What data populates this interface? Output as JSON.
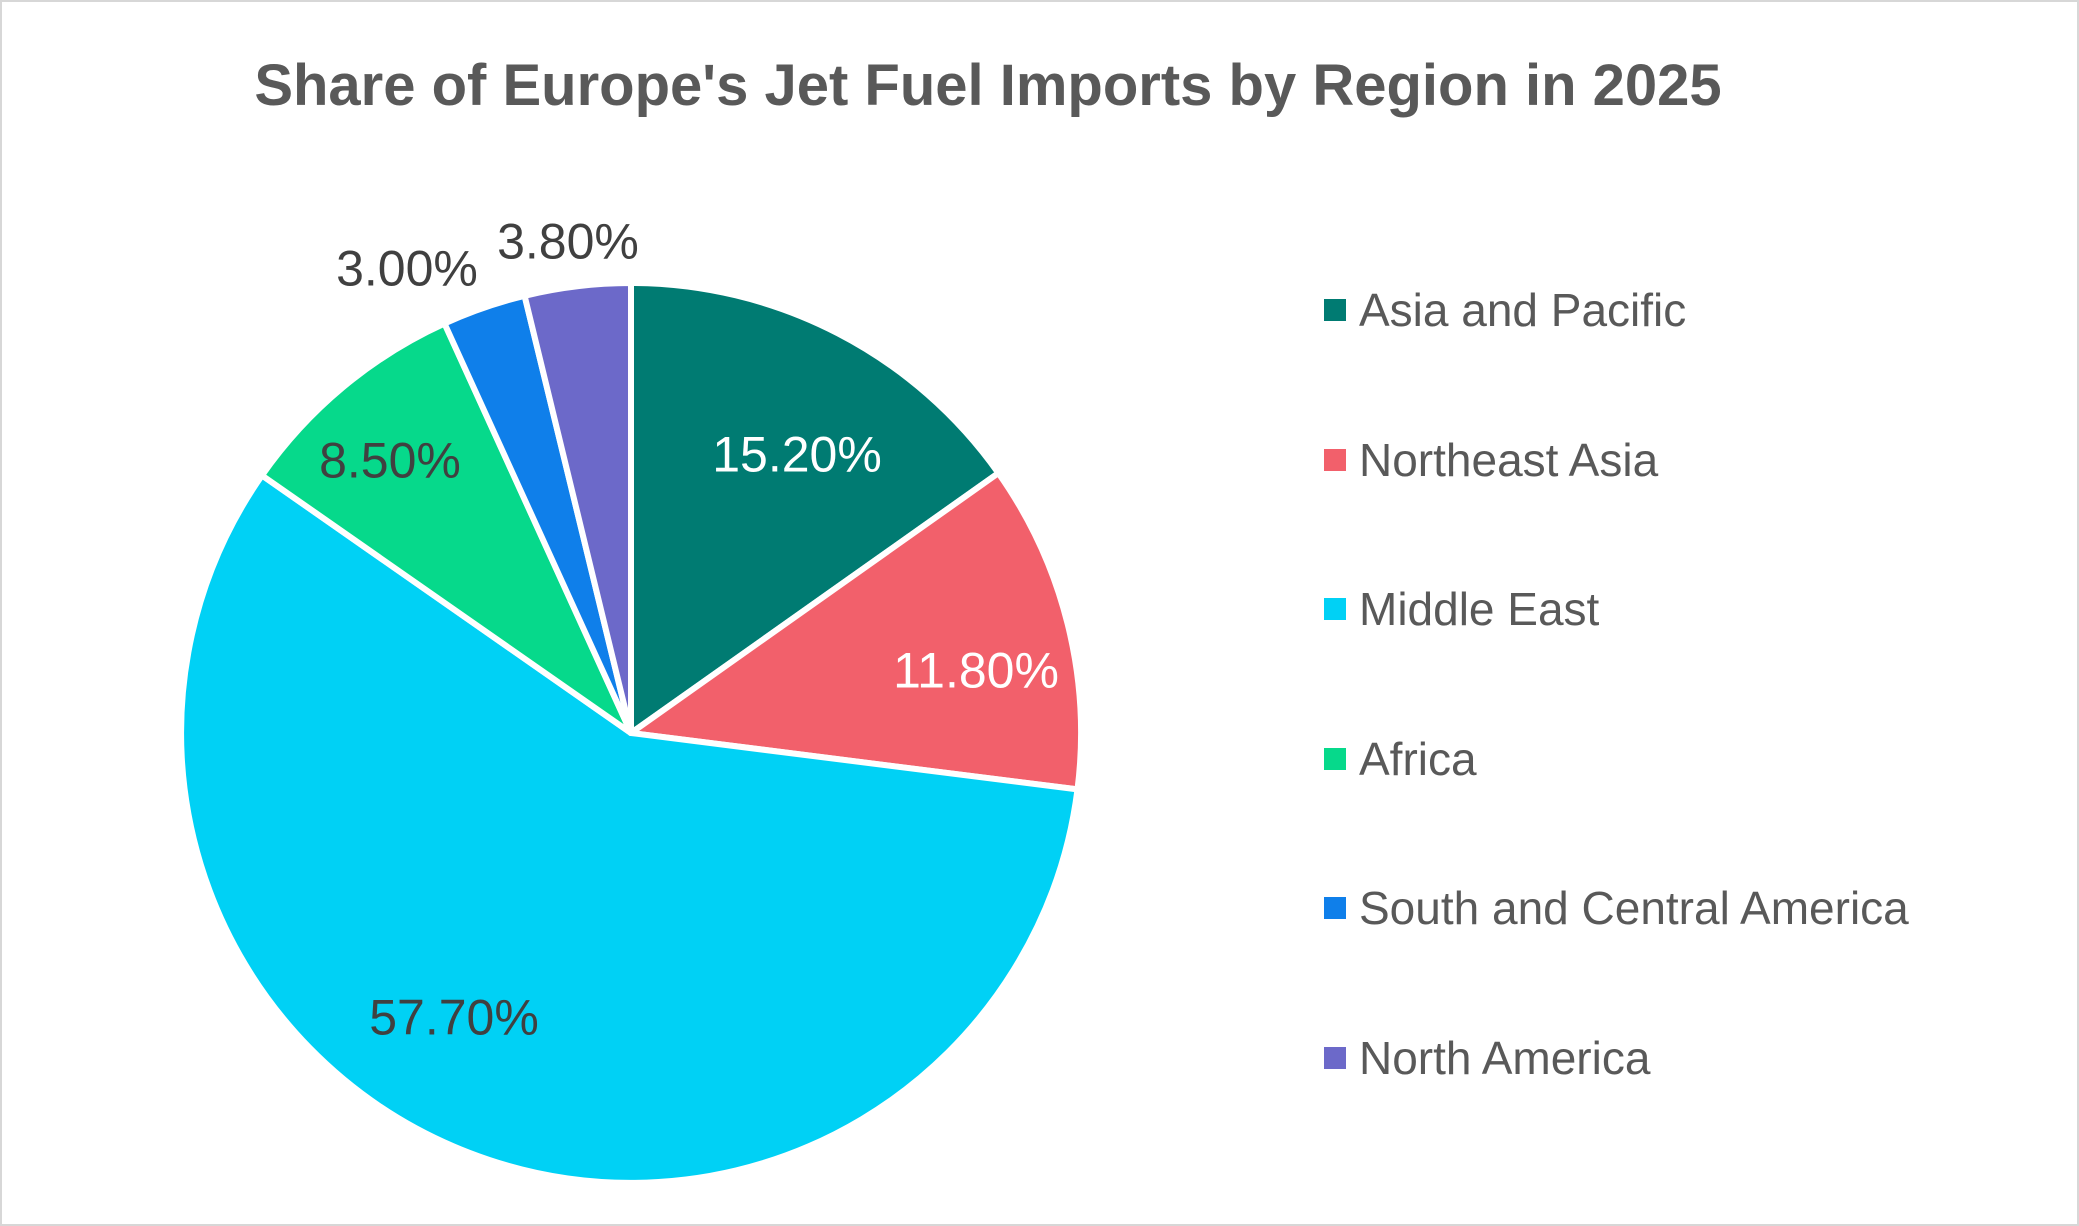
{
  "title": "Share of Europe's Jet Fuel Imports by Region in 2025",
  "chart_data": {
    "type": "pie",
    "title": "Share of Europe's Jet Fuel Imports by Region in 2025",
    "legend_position": "right",
    "direction": "clockwise",
    "start_angle_deg": 0,
    "slices": [
      {
        "label": "Asia and Pacific",
        "value": 15.2,
        "display": "15.20%",
        "color": "#007B72"
      },
      {
        "label": "Northeast Asia",
        "value": 11.8,
        "display": "11.80%",
        "color": "#F2606B"
      },
      {
        "label": "Middle East",
        "value": 57.7,
        "display": "57.70%",
        "color": "#00D1F5"
      },
      {
        "label": "Africa",
        "value": 8.5,
        "display": "8.50%",
        "color": "#06D98B"
      },
      {
        "label": "South and Central America",
        "value": 3.0,
        "display": "3.00%",
        "color": "#0F7FEA"
      },
      {
        "label": "North America",
        "value": 3.8,
        "display": "3.80%",
        "color": "#6C69C9"
      }
    ],
    "text_colors": {
      "title": "#595959",
      "legend": "#595959",
      "label_dark": "#404040",
      "label_light": "#FFFFFF"
    }
  }
}
